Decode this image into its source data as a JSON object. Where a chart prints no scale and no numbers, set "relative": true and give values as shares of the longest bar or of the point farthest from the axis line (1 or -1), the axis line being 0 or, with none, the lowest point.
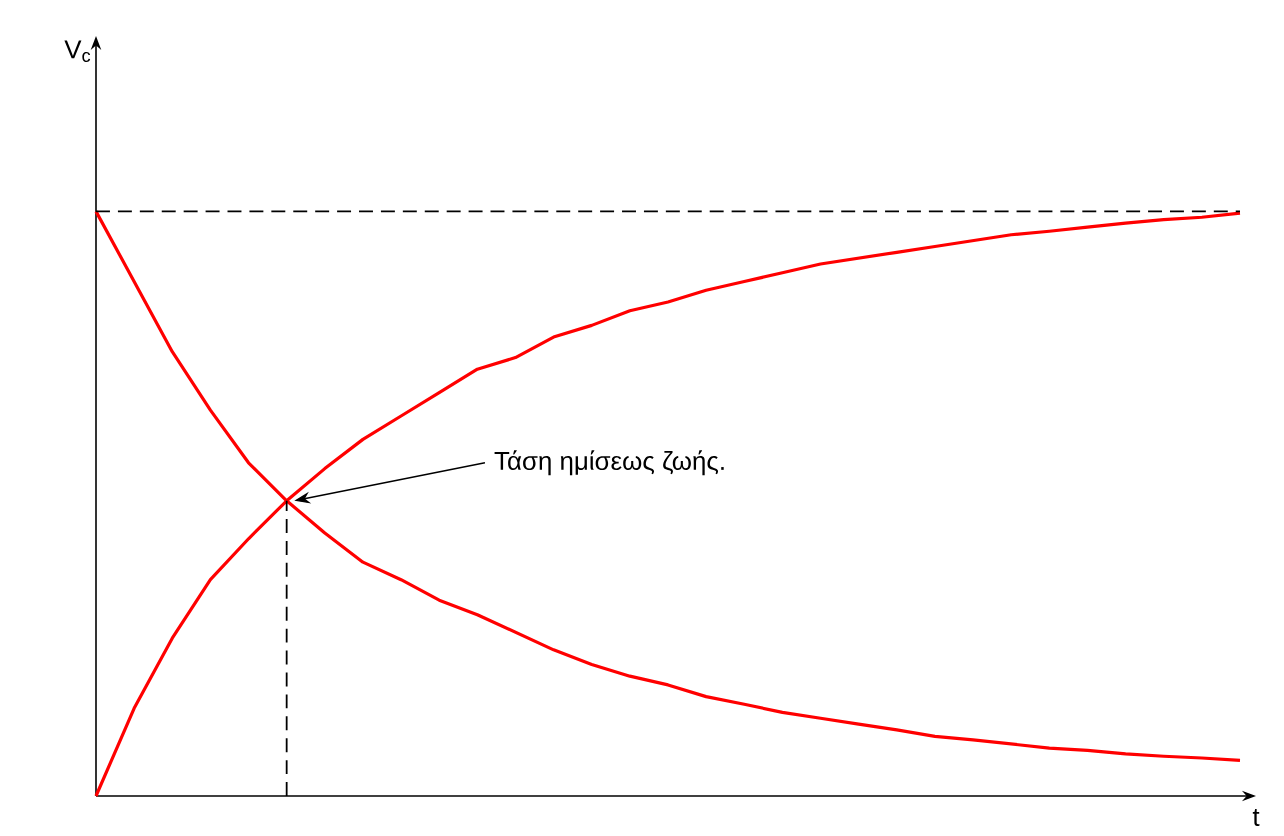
{
  "chart_data": {
    "type": "line",
    "relative": true,
    "xlabel": "t",
    "categories": [
      null,
      null,
      null,
      null,
      null,
      null,
      null,
      null,
      null,
      null,
      null,
      null,
      null,
      null,
      null,
      null,
      null,
      null,
      null,
      null,
      null,
      null,
      null,
      null,
      null,
      null,
      null,
      null,
      null,
      null,
      null
    ],
    "series": [
      {
        "color": "#ff0000",
        "values": [
          0,
          0.15,
          0.27,
          0.37,
          0.44,
          0.505,
          0.56,
          0.61,
          0.65,
          0.69,
          0.73,
          0.75,
          0.785,
          0.805,
          0.83,
          0.845,
          0.865,
          0.88,
          0.895,
          0.91,
          0.92,
          0.93,
          0.94,
          0.95,
          0.96,
          0.966,
          0.973,
          0.98,
          0.986,
          0.99,
          0.997
        ]
      },
      {
        "color": "#ff0000",
        "values": [
          1,
          0.88,
          0.76,
          0.66,
          0.57,
          0.505,
          0.45,
          0.4,
          0.37,
          0.335,
          0.31,
          0.28,
          0.25,
          0.225,
          0.205,
          0.19,
          0.17,
          0.157,
          0.143,
          0.133,
          0.123,
          0.113,
          0.102,
          0.096,
          0.089,
          0.082,
          0.078,
          0.072,
          0.068,
          0.065,
          0.061
        ]
      }
    ],
    "ref_lines": [
      {
        "axis": "y",
        "value": 1,
        "line_style": "dashed"
      }
    ],
    "annotations": [
      "V$_{c}$",
      "Τάση ημίσεως ζωής."
    ],
    "line_style": "solid",
    "marker": "none"
  }
}
